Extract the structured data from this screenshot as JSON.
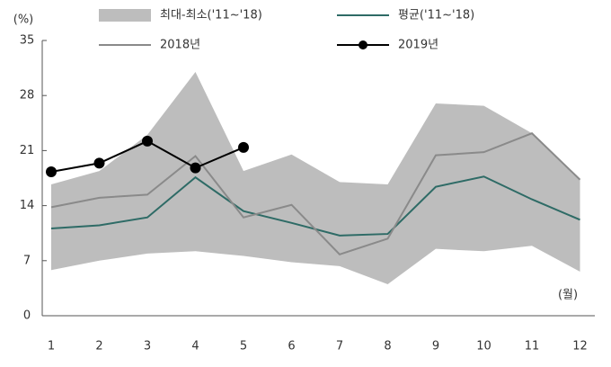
{
  "chart_data": {
    "type": "line",
    "y_label": "(%)",
    "x_label": "(월)",
    "categories": [
      "1",
      "2",
      "3",
      "4",
      "5",
      "6",
      "7",
      "8",
      "9",
      "10",
      "11",
      "12"
    ],
    "ylim": [
      0,
      35
    ],
    "yticks": [
      0,
      7,
      14,
      21,
      28,
      35
    ],
    "series": [
      {
        "name": "최대-최소('11~'18)",
        "kind": "band",
        "color": "#bdbdbd",
        "values": [
          16.7,
          18.4,
          23,
          31,
          18.4,
          20.5,
          17,
          16.7,
          27,
          26.7,
          23.2,
          17.3
        ],
        "lower": [
          5.8,
          7,
          7.9,
          8.2,
          7.6,
          6.8,
          6.3,
          4,
          8.5,
          8.2,
          8.9,
          5.6
        ]
      },
      {
        "name": "평균('11~'18)",
        "kind": "line",
        "color": "#2e6b66",
        "values": [
          11.1,
          11.5,
          12.5,
          17.6,
          13.3,
          11.8,
          10.2,
          10.4,
          16.4,
          17.7,
          14.8,
          12.2
        ]
      },
      {
        "name": "2018년",
        "kind": "line",
        "color": "#8a8a8a",
        "values": [
          13.8,
          15,
          15.4,
          20.3,
          12.5,
          14.1,
          7.8,
          9.8,
          20.4,
          20.8,
          23.2,
          17.3
        ]
      },
      {
        "name": "2019년",
        "kind": "marker-line",
        "color": "#000000",
        "values": [
          18.3,
          19.4,
          22.2,
          18.8,
          21.4,
          null,
          null,
          null,
          null,
          null,
          null,
          null
        ]
      }
    ]
  }
}
